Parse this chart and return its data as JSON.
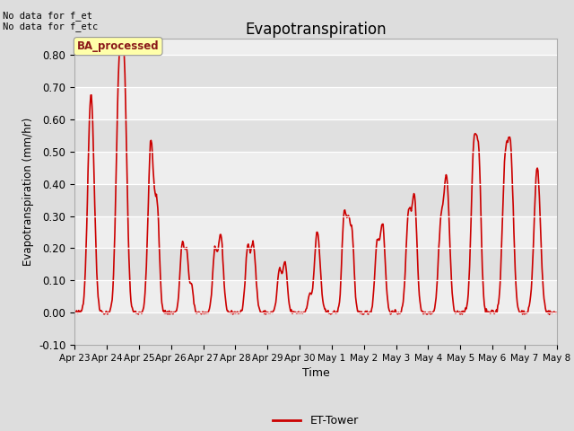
{
  "title": "Evapotranspiration",
  "ylabel": "Evapotranspiration (mm/hr)",
  "xlabel": "Time",
  "ylim": [
    -0.1,
    0.85
  ],
  "yticks": [
    -0.1,
    0.0,
    0.1,
    0.2,
    0.3,
    0.4,
    0.5,
    0.6,
    0.7,
    0.8
  ],
  "line_color": "#cc0000",
  "line_width": 1.2,
  "bg_color": "#dddddd",
  "plot_bg_color_light": "#eeeeee",
  "plot_bg_color_dark": "#e0e0e0",
  "no_data_text1": "No data for f_et",
  "no_data_text2": "No data for f_etc",
  "legend_label": "ET-Tower",
  "badge_text": "BA_processed",
  "x_tick_labels": [
    "Apr 23",
    "Apr 24",
    "Apr 25",
    "Apr 26",
    "Apr 27",
    "Apr 28",
    "Apr 29",
    "Apr 30",
    "May 1",
    "May 2",
    "May 3",
    "May 4",
    "May 5",
    "May 6",
    "May 7",
    "May 8"
  ],
  "n_days": 15,
  "points_per_day": 48,
  "seed": 42
}
